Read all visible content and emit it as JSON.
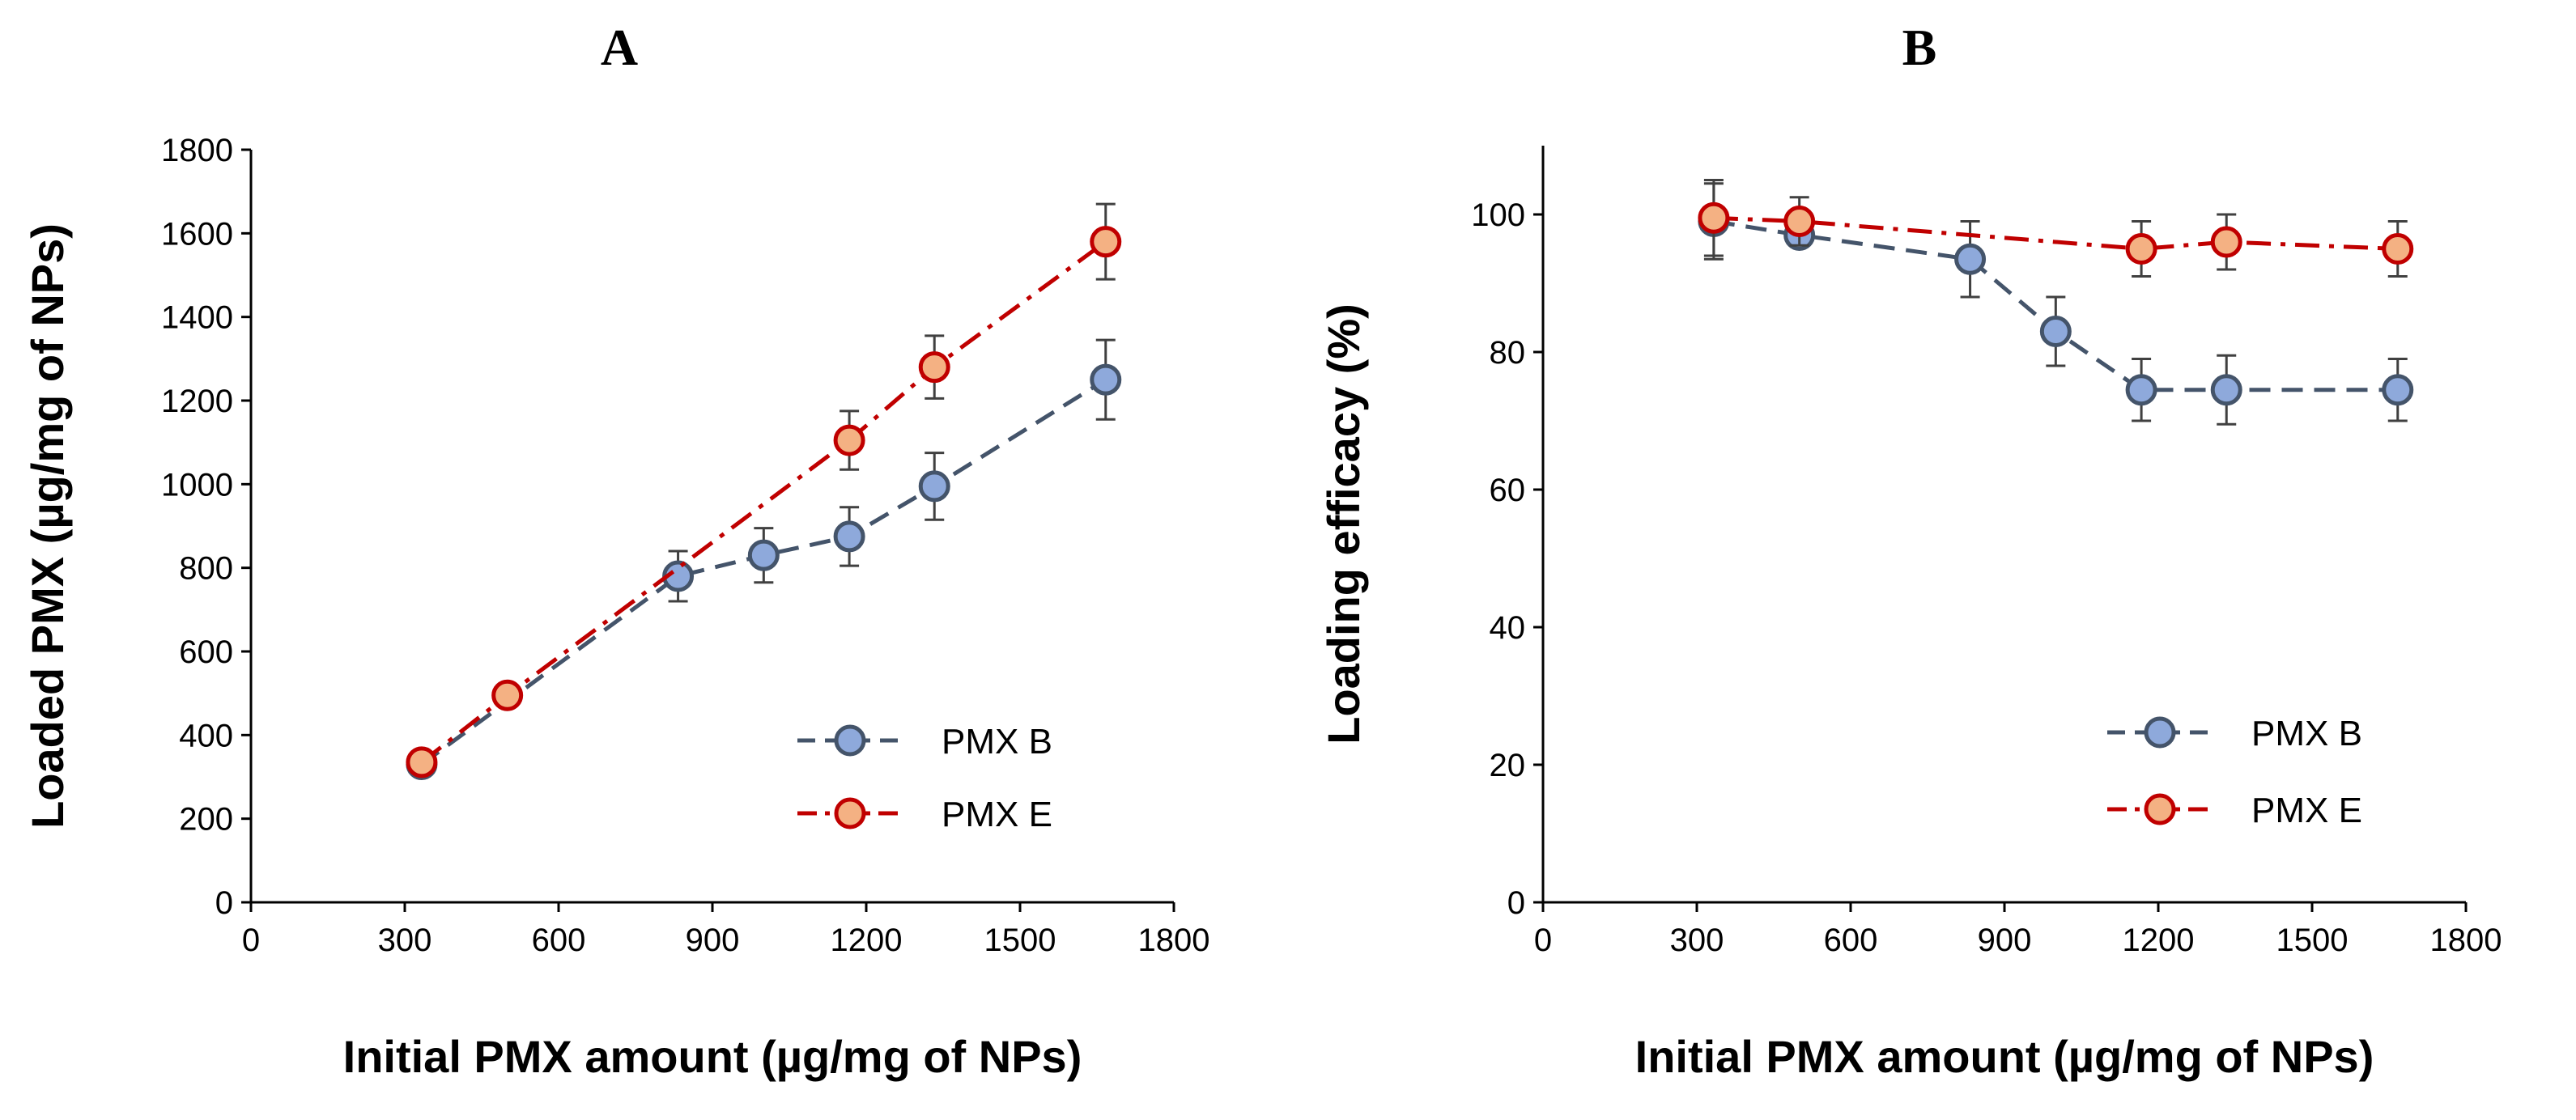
{
  "chart_data": [
    {
      "type": "line",
      "panel_label": "A",
      "title": "",
      "xlabel": "Initial PMX amount (µg/mg of NPs)",
      "ylabel": "Loaded PMX (µg/mg of NPs)",
      "xlim": [
        0,
        1800
      ],
      "ylim": [
        0,
        1800
      ],
      "xticks": [
        0,
        300,
        600,
        900,
        1200,
        1500,
        1800
      ],
      "yticks": [
        0,
        200,
        400,
        600,
        800,
        1000,
        1200,
        1400,
        1600,
        1800
      ],
      "xtick_labels": [
        "0",
        "300",
        "600",
        "900",
        "1200",
        "1500",
        "1800"
      ],
      "ytick_labels": [
        "0",
        "200",
        "400",
        "600",
        "800",
        "1000",
        "1200",
        "1400",
        "1600",
        "1800"
      ],
      "grid": false,
      "legend_position": "bottom-right",
      "series": [
        {
          "name": "PMX B",
          "line_color": "#44546A",
          "marker_fill": "#8EA9DB",
          "marker_edge": "#44546A",
          "line_style": "dash",
          "x": [
            333,
            833,
            1000,
            1167,
            1333,
            1667
          ],
          "y": [
            330,
            780,
            830,
            875,
            995,
            1250
          ],
          "err": [
            20,
            60,
            65,
            70,
            80,
            95
          ]
        },
        {
          "name": "PMX E",
          "line_color": "#C00000",
          "marker_fill": "#F4B183",
          "marker_edge": "#C00000",
          "line_style": "dashdot",
          "x": [
            333,
            500,
            1167,
            1333,
            1667
          ],
          "y": [
            335,
            495,
            1105,
            1280,
            1580
          ],
          "err": [
            20,
            25,
            70,
            75,
            90
          ]
        }
      ]
    },
    {
      "type": "line",
      "panel_label": "B",
      "title": "",
      "xlabel": "Initial PMX amount (µg/mg of NPs)",
      "ylabel": "Loading efficacy (%)",
      "xlim": [
        0,
        1800
      ],
      "ylim": [
        0,
        110
      ],
      "xticks": [
        0,
        300,
        600,
        900,
        1200,
        1500,
        1800
      ],
      "yticks": [
        0,
        20,
        40,
        60,
        80,
        100
      ],
      "xtick_labels": [
        "0",
        "300",
        "600",
        "900",
        "1200",
        "1500",
        "1800"
      ],
      "ytick_labels": [
        "0",
        "20",
        "40",
        "60",
        "80",
        "100"
      ],
      "grid": false,
      "legend_position": "bottom-right",
      "series": [
        {
          "name": "PMX B",
          "line_color": "#44546A",
          "marker_fill": "#8EA9DB",
          "marker_edge": "#44546A",
          "line_style": "dash",
          "x": [
            333,
            500,
            833,
            1000,
            1167,
            1333,
            1667
          ],
          "y": [
            99,
            97,
            93.5,
            83,
            74.5,
            74.5,
            74.5
          ],
          "err": [
            5.5,
            0,
            5.5,
            5,
            4.5,
            5,
            4.5
          ]
        },
        {
          "name": "PMX E",
          "line_color": "#C00000",
          "marker_fill": "#F4B183",
          "marker_edge": "#C00000",
          "line_style": "dashdot",
          "x": [
            333,
            500,
            1167,
            1333,
            1667
          ],
          "y": [
            99.5,
            99,
            95,
            96,
            95
          ],
          "err": [
            5.5,
            3.5,
            4,
            4,
            4
          ]
        }
      ]
    }
  ]
}
